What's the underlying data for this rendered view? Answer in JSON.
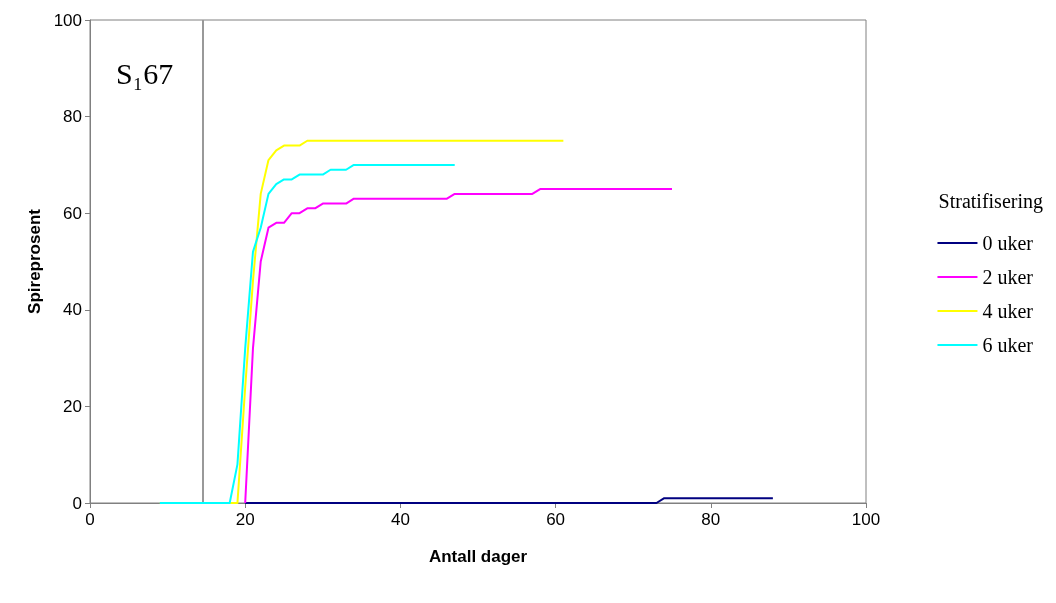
{
  "chart_data": {
    "type": "line",
    "xlabel": "Antall dager",
    "ylabel": "Spireprosent",
    "legend_title": "Stratifisering",
    "legend": "right",
    "xlim": [
      0,
      100
    ],
    "xticks": [
      0,
      20,
      40,
      60,
      80,
      100
    ],
    "ylim": [
      0,
      100
    ],
    "yticks": [
      0,
      20,
      40,
      60,
      80,
      100
    ],
    "grid": false,
    "marker": "none",
    "annotations": [
      "S₁67"
    ],
    "ref_lines": [
      {
        "axis": "x",
        "value": 14.5,
        "label": null,
        "color": "#999999"
      }
    ],
    "series": [
      {
        "name": "0 uker",
        "color": "#000080",
        "x": [
          20,
          73,
          74,
          88
        ],
        "values": [
          0,
          0,
          1,
          1
        ]
      },
      {
        "name": "2 uker",
        "color": "#ff00ff",
        "x": [
          20,
          21,
          22,
          23,
          24,
          25,
          26,
          27,
          28,
          29,
          30,
          33,
          34,
          46,
          47,
          57,
          58,
          75
        ],
        "values": [
          0,
          32,
          50,
          57,
          58,
          58,
          60,
          60,
          61,
          61,
          62,
          62,
          63,
          63,
          64,
          64,
          65,
          65
        ]
      },
      {
        "name": "4 uker",
        "color": "#ffff00",
        "x": [
          9,
          19,
          20,
          21,
          22,
          23,
          24,
          25,
          27,
          28,
          61
        ],
        "values": [
          0,
          0,
          24,
          46,
          64,
          71,
          73,
          74,
          74,
          75,
          75
        ]
      },
      {
        "name": "6 uker",
        "color": "#00ffff",
        "x": [
          9,
          18,
          19,
          20,
          21,
          22,
          23,
          24,
          25,
          26,
          27,
          30,
          31,
          33,
          34,
          47
        ],
        "values": [
          0,
          0,
          8,
          32,
          52,
          57,
          64,
          66,
          67,
          67,
          68,
          68,
          69,
          69,
          70,
          70
        ]
      }
    ]
  }
}
